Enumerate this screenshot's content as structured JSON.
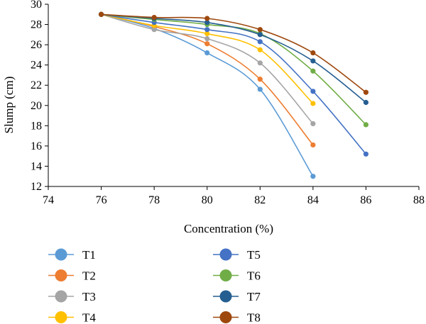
{
  "chart_data": {
    "type": "line",
    "title": "",
    "xlabel": "Concentration (%)",
    "ylabel": "Slump (cm)",
    "xlim": [
      74,
      88
    ],
    "ylim": [
      12,
      30
    ],
    "xticks": [
      "74",
      "76",
      "78",
      "80",
      "82",
      "84",
      "86",
      "88"
    ],
    "yticks": [
      "12",
      "14",
      "16",
      "18",
      "20",
      "22",
      "24",
      "26",
      "28",
      "30"
    ],
    "grid": false,
    "legend_position": "bottom",
    "series": [
      {
        "name": "T1",
        "color": "#5B9BD5",
        "x": [
          76,
          78,
          80,
          82,
          84
        ],
        "values": [
          29.0,
          27.6,
          25.2,
          21.6,
          13.0
        ]
      },
      {
        "name": "T2",
        "color": "#ED7D31",
        "x": [
          76,
          78,
          80,
          82,
          84
        ],
        "values": [
          29.0,
          27.8,
          26.1,
          22.6,
          16.1
        ]
      },
      {
        "name": "T3",
        "color": "#A5A5A5",
        "x": [
          76,
          78,
          80,
          82,
          84
        ],
        "values": [
          29.0,
          27.5,
          26.6,
          24.2,
          18.2
        ]
      },
      {
        "name": "T4",
        "color": "#FFC000",
        "x": [
          76,
          78,
          80,
          82,
          84
        ],
        "values": [
          29.0,
          27.9,
          27.1,
          25.5,
          20.2
        ]
      },
      {
        "name": "T5",
        "color": "#4472C4",
        "x": [
          76,
          78,
          80,
          82,
          84,
          86
        ],
        "values": [
          29.0,
          28.2,
          27.5,
          26.3,
          21.4,
          15.2
        ]
      },
      {
        "name": "T6",
        "color": "#70AD47",
        "x": [
          76,
          78,
          80,
          82,
          84,
          86
        ],
        "values": [
          29.0,
          28.5,
          28.0,
          27.1,
          23.4,
          18.1
        ]
      },
      {
        "name": "T7",
        "color": "#255E91",
        "x": [
          76,
          78,
          80,
          82,
          84,
          86
        ],
        "values": [
          29.0,
          28.6,
          28.2,
          27.0,
          24.4,
          20.3
        ]
      },
      {
        "name": "T8",
        "color": "#9E480E",
        "x": [
          76,
          78,
          80,
          82,
          84,
          86
        ],
        "values": [
          29.0,
          28.7,
          28.6,
          27.5,
          25.2,
          21.3
        ]
      }
    ]
  }
}
